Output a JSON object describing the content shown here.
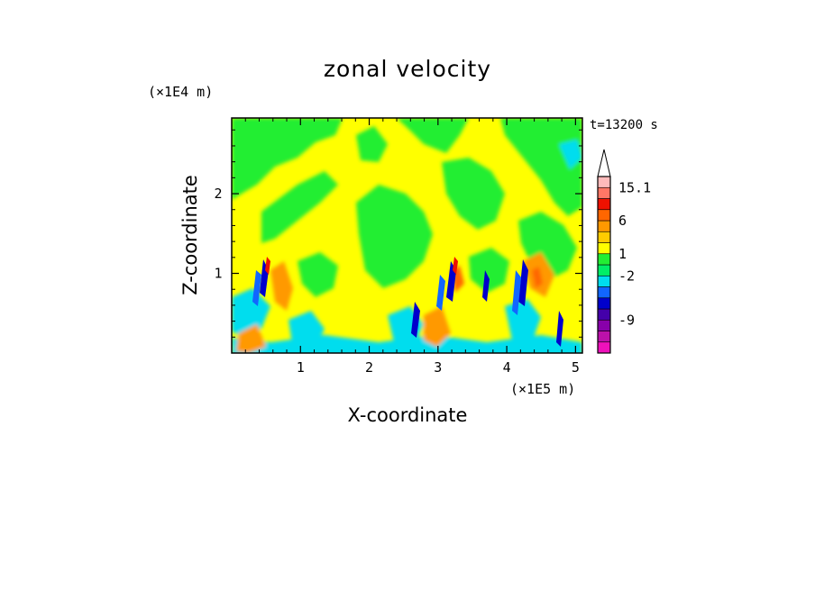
{
  "chart_data": {
    "type": "heatmap",
    "title": "zonal velocity",
    "xlabel": "X-coordinate",
    "ylabel": "Z-coordinate",
    "x_scale_note": "(×1E5 m)",
    "y_scale_note": "(×1E4 m)",
    "time_label": "t=13200 s",
    "xlim": [
      0,
      5.1
    ],
    "ylim": [
      0,
      2.95
    ],
    "x_ticks": [
      1,
      2,
      3,
      4,
      5
    ],
    "x_tick_labels": [
      "1",
      "2",
      "3",
      "4",
      "5"
    ],
    "y_ticks": [
      1,
      2
    ],
    "y_tick_labels": [
      "1",
      "2"
    ],
    "colorbar": {
      "bands": [
        {
          "color": "#ee11bb"
        },
        {
          "color": "#bb11aa"
        },
        {
          "color": "#8800aa"
        },
        {
          "color": "#4400aa"
        },
        {
          "color": "#0000cc"
        },
        {
          "color": "#1166ff"
        },
        {
          "color": "#00ddee"
        },
        {
          "color": "#00ee66"
        },
        {
          "color": "#22ee33"
        },
        {
          "color": "#ffff00"
        },
        {
          "color": "#ffcc00"
        },
        {
          "color": "#ff9900"
        },
        {
          "color": "#ff6600"
        },
        {
          "color": "#ee1100"
        },
        {
          "color": "#ff7766"
        },
        {
          "color": "#ffbbbb"
        }
      ],
      "labels": [
        {
          "text": "15.1",
          "band_edge": 15
        },
        {
          "text": "6",
          "band_edge": 12
        },
        {
          "text": "1",
          "band_edge": 9
        },
        {
          "text": "-2",
          "band_edge": 7
        },
        {
          "text": "-9",
          "band_edge": 3
        }
      ]
    }
  }
}
